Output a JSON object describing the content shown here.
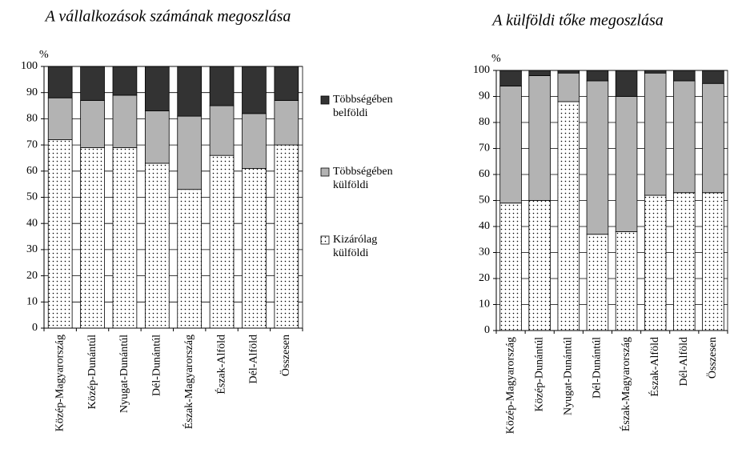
{
  "chart_data": [
    {
      "type": "bar",
      "stacked": true,
      "title": "A vállalkozások számának megoszlása",
      "y_label": "%",
      "categories": [
        "Közép-Magyarország",
        "Közép-Dunántúl",
        "Nyugat-Dunántúl",
        "Dél-Dunántúl",
        "Észak-Magyarország",
        "Észak-Alföld",
        "Dél-Alföld",
        "Összesen"
      ],
      "series": [
        {
          "name": "Kizárólag külföldi",
          "color": "dotted",
          "values": [
            72,
            69,
            69,
            63,
            53,
            66,
            61,
            70
          ]
        },
        {
          "name": "Többségében külföldi",
          "color": "#b3b3b3",
          "values": [
            16,
            18,
            20,
            20,
            28,
            19,
            21,
            17
          ]
        },
        {
          "name": "Többségében belföldi",
          "color": "#333333",
          "values": [
            12,
            13,
            11,
            17,
            19,
            15,
            18,
            13
          ]
        }
      ],
      "ylim": [
        0,
        100
      ],
      "yticks": [
        0,
        10,
        20,
        30,
        40,
        50,
        60,
        70,
        80,
        90,
        100
      ],
      "grid": true
    },
    {
      "type": "bar",
      "stacked": true,
      "title": "A külföldi tőke megoszlása",
      "y_label": "%",
      "categories": [
        "Közép-Magyarország",
        "Közép-Dunántúl",
        "Nyugat-Dunántúl",
        "Dél-Dunántúl",
        "Észak-Magyarország",
        "Észak-Alföld",
        "Dél-Alföld",
        "Összesen"
      ],
      "series": [
        {
          "color": "dotted",
          "values": [
            49,
            50,
            88,
            37,
            38,
            52,
            53,
            53
          ]
        },
        {
          "color": "#b3b3b3",
          "values": [
            45,
            48,
            11,
            59,
            52,
            47,
            43,
            42
          ]
        },
        {
          "color": "#333333",
          "values": [
            6,
            2,
            1,
            4,
            10,
            1,
            4,
            5
          ]
        }
      ],
      "ylim": [
        0,
        100
      ],
      "yticks": [
        0,
        10,
        20,
        30,
        40,
        50,
        60,
        70,
        80,
        90,
        100
      ],
      "grid": true
    }
  ]
}
